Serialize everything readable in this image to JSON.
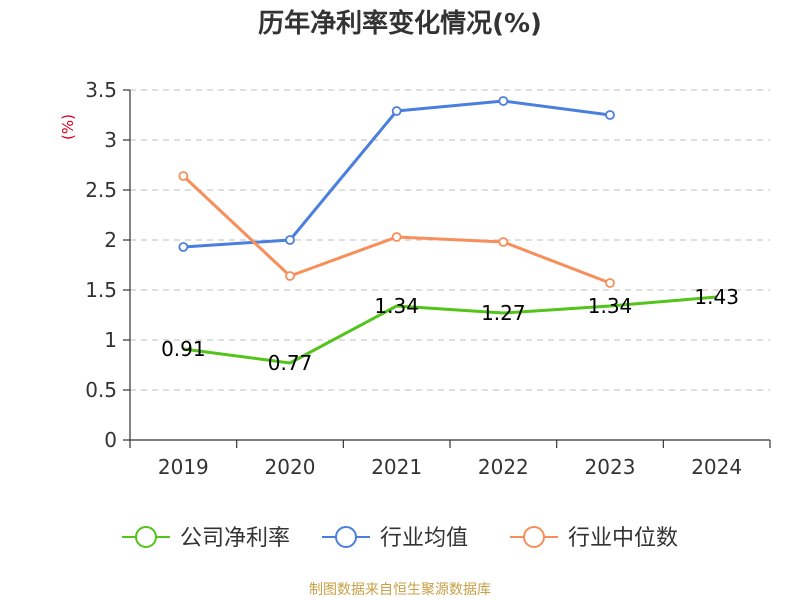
{
  "chart_data": {
    "type": "line",
    "title": "历年净利率变化情况(%)",
    "unit": "(%)",
    "categories": [
      "2019",
      "2020",
      "2021",
      "2022",
      "2023",
      "2024"
    ],
    "ylim": [
      0,
      3.5
    ],
    "yticks": [
      "0",
      "0.5",
      "1",
      "1.5",
      "2",
      "2.5",
      "3",
      "3.5"
    ],
    "grid": true,
    "legend_position": "bottom",
    "series": [
      {
        "name": "公司净利率",
        "color": "#52c41a",
        "values": [
          0.91,
          0.77,
          1.34,
          1.27,
          1.34,
          1.43
        ],
        "labels": [
          "0.91",
          "0.77",
          "1.34",
          "1.27",
          "1.34",
          "1.43"
        ]
      },
      {
        "name": "行业均值",
        "color": "#4a7fe0",
        "values": [
          1.93,
          2.0,
          3.29,
          3.39,
          3.25,
          null
        ]
      },
      {
        "name": "行业中位数",
        "color": "#f88e5a",
        "values": [
          2.64,
          1.64,
          2.03,
          1.98,
          1.57,
          null
        ]
      }
    ]
  },
  "source": "制图数据来自恒生聚源数据库"
}
